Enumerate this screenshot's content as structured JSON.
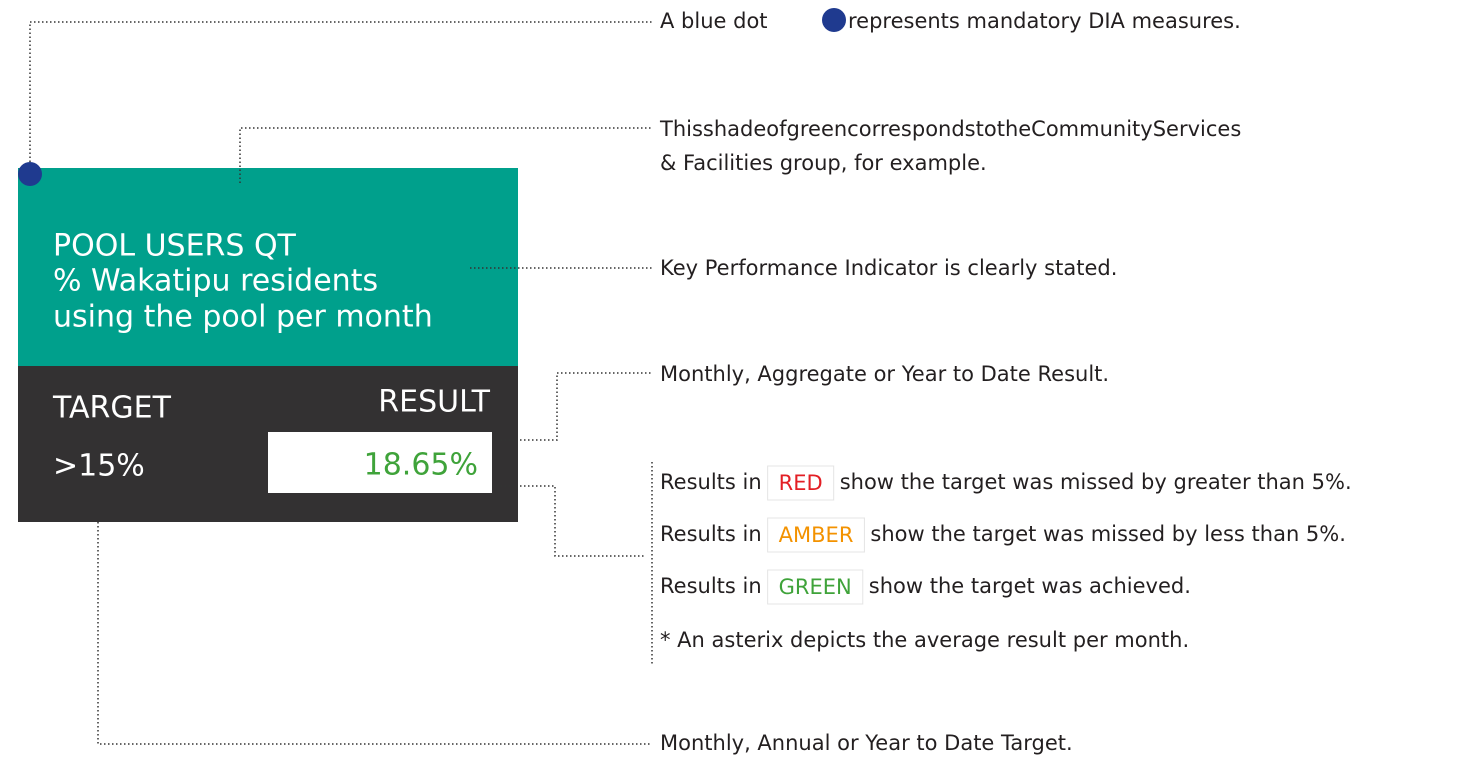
{
  "card": {
    "title": "POOL USERS QT",
    "kpi": [
      "% Wakatipu residents",
      "using the pool per month"
    ],
    "target_label": "TARGET",
    "result_label": "RESULT",
    "target": ">15%",
    "result": "18.65%"
  },
  "annotations": {
    "blue_dot": [
      "A blue dot",
      "represents mandatory DIA measures."
    ],
    "group_color": [
      "ThisshadeofgreencorrespondstotheCommunityServices",
      "& Facilities group, for example."
    ],
    "kpi": "Key Performance Indicator is clearly stated.",
    "result": "Monthly, Aggregate or Year to Date Result.",
    "legend": [
      {
        "prefix": "Results in",
        "tag": "RED",
        "text": "show the target was missed by greater than 5%."
      },
      {
        "prefix": "Results in",
        "tag": "AMBER",
        "text": "show the target was missed by less than 5%."
      },
      {
        "prefix": "Results in",
        "tag": "GREEN",
        "text": "show the target was achieved."
      }
    ],
    "asterix": "* An asterix depicts the average result per month.",
    "target": "Monthly, Annual or Year to Date Target."
  }
}
